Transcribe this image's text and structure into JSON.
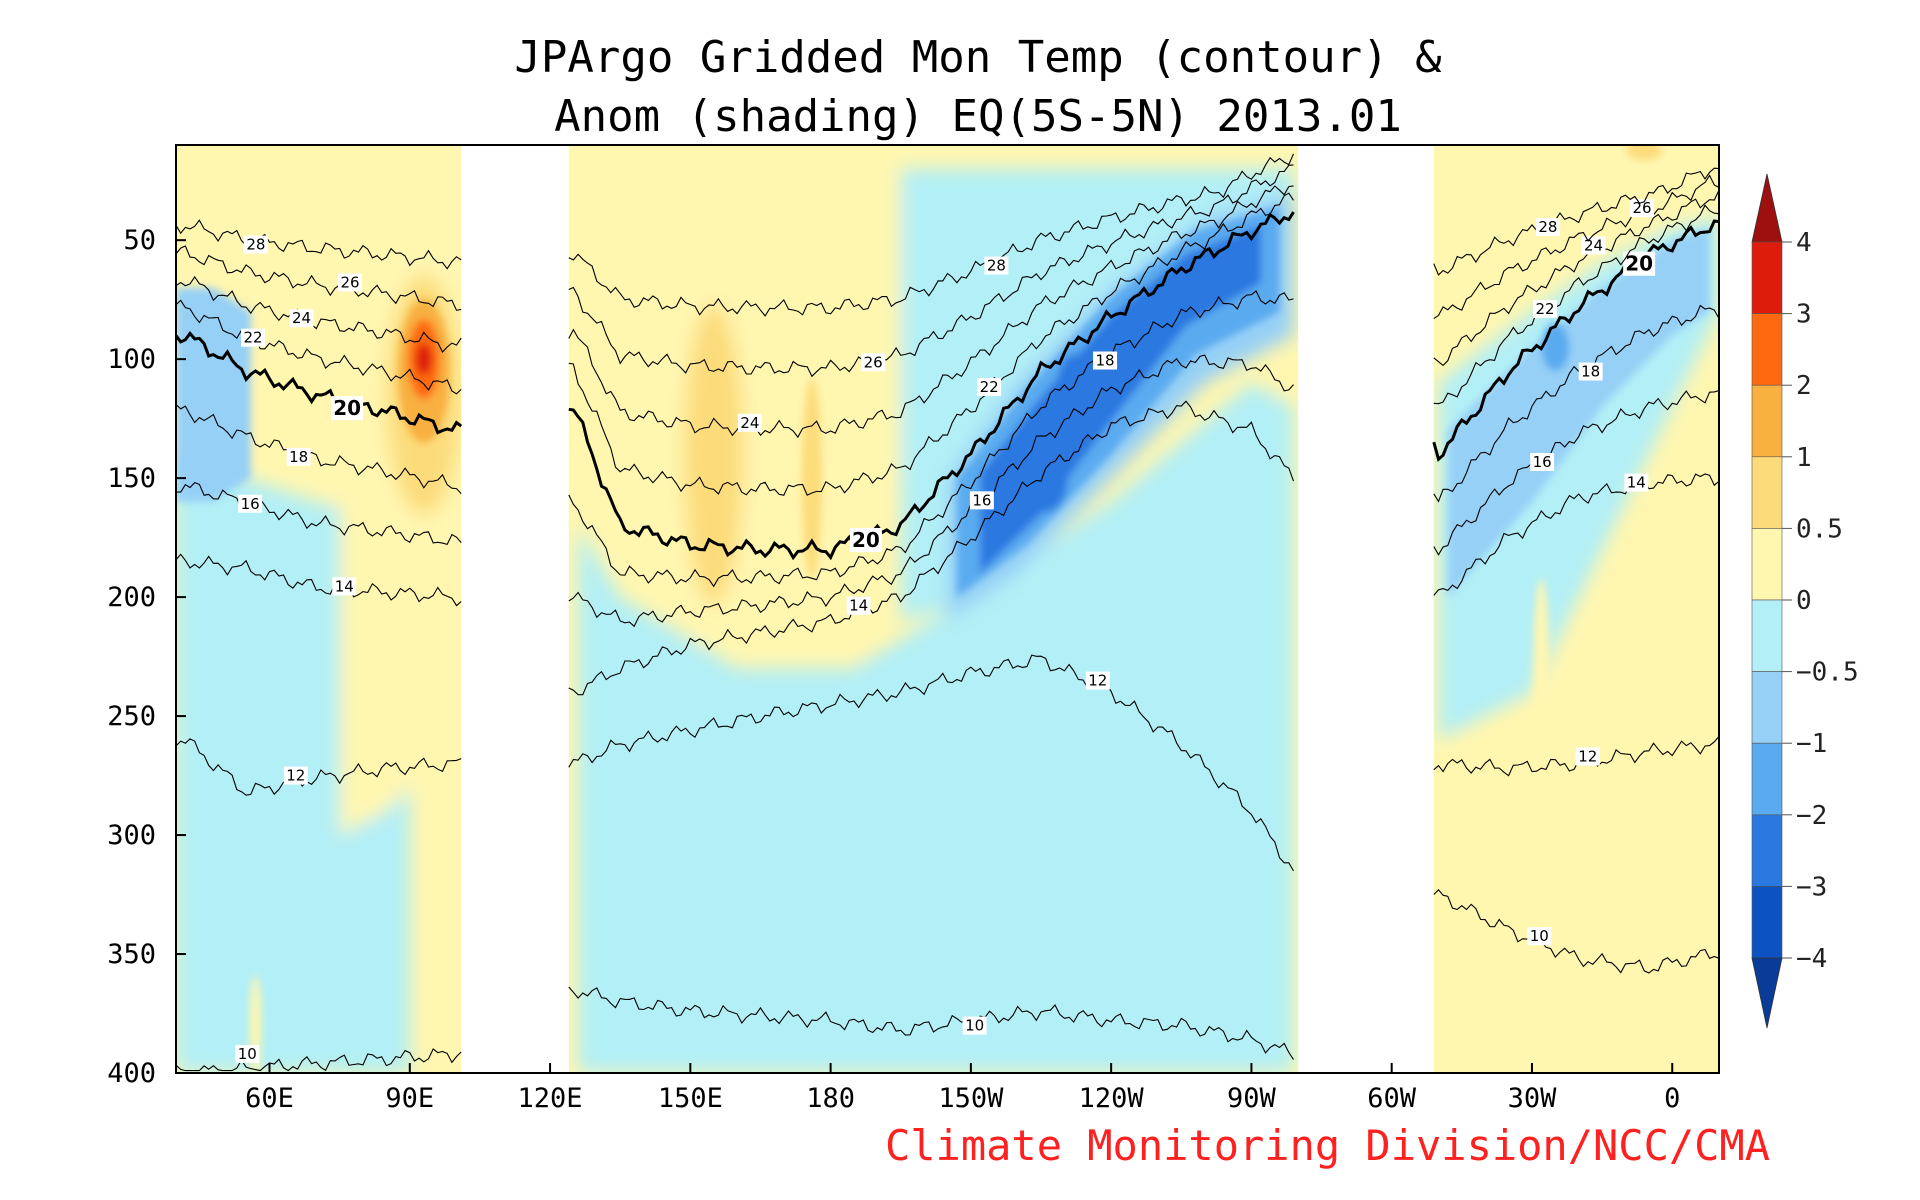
{
  "chart_data": {
    "type": "heatmap",
    "title": [
      "JPArgo Gridded Mon Temp (contour) &",
      "Anom (shading) EQ(5S-5N) 2013.01"
    ],
    "credit": "Climate Monitoring Division/NCC/CMA",
    "xlabel": "",
    "ylabel": "",
    "x_range": [
      40,
      370
    ],
    "y_range": [
      400,
      10
    ],
    "y_ticks": [
      50,
      100,
      150,
      200,
      250,
      300,
      350,
      400
    ],
    "y_tick_labels": [
      "50",
      "100",
      "150",
      "200",
      "250",
      "300",
      "350",
      "400"
    ],
    "x_ticks": [
      60,
      90,
      120,
      150,
      180,
      210,
      240,
      270,
      300,
      330,
      360
    ],
    "x_tick_labels": [
      "60E",
      "90E",
      "120E",
      "150E",
      "180",
      "150W",
      "120W",
      "90W",
      "60W",
      "30W",
      "0"
    ],
    "missing_longitudes": [
      [
        101,
        124
      ],
      [
        280,
        309
      ]
    ],
    "colorbar": {
      "labels": [
        "4",
        "3",
        "2",
        "1",
        "0.5",
        "0",
        "−0.5",
        "−1",
        "−2",
        "−3",
        "−4"
      ],
      "colors": [
        "#9e1010",
        "#dd1c0c",
        "#ff6a10",
        "#f8b040",
        "#fcdc7a",
        "#fff6b0",
        "#b2eff6",
        "#96d0f6",
        "#5aaaf0",
        "#2a78e0",
        "#0c52c0",
        "#083c98"
      ]
    },
    "contour_levels": [
      10,
      12,
      14,
      16,
      18,
      20,
      22,
      24,
      26,
      28
    ],
    "isotherm_depths": {
      "x": [
        42,
        55,
        70,
        85,
        100,
        125,
        135,
        150,
        165,
        180,
        195,
        210,
        225,
        240,
        255,
        270,
        279,
        310,
        325,
        340,
        355,
        368
      ],
      "t20": [
        90,
        105,
        115,
        122,
        130,
        120,
        170,
        178,
        180,
        180,
        170,
        140,
        105,
        82,
        62,
        46,
        38,
        140,
        105,
        78,
        56,
        44
      ],
      "t14": [
        185,
        188,
        196,
        198,
        200,
        240,
        230,
        220,
        215,
        210,
        200,
        175,
        148,
        128,
        120,
        130,
        150,
        200,
        175,
        158,
        152,
        150
      ],
      "t12": [
        260,
        282,
        276,
        272,
        270,
        270,
        262,
        256,
        250,
        245,
        240,
        232,
        226,
        240,
        262,
        290,
        315,
        270,
        272,
        270,
        265,
        262
      ],
      "t10": [
        400,
        398,
        396,
        394,
        392,
        365,
        370,
        374,
        376,
        378,
        382,
        378,
        374,
        378,
        380,
        386,
        392,
        325,
        340,
        352,
        356,
        350
      ]
    },
    "anomaly_features": [
      {
        "name": "warm core",
        "x": 93,
        "depth": 100,
        "anom": 3.2
      },
      {
        "name": "warm lens",
        "x": 155,
        "depth": 135,
        "anom": 1.4
      },
      {
        "name": "cold tongue",
        "x": 225,
        "depth": 100,
        "anom": -3.2
      },
      {
        "name": "cold east atlantic",
        "x": 340,
        "depth": 90,
        "anom": -1.8
      },
      {
        "name": "warm atlantic surface",
        "x": 355,
        "depth": 20,
        "anom": 1.2
      }
    ],
    "grid": false,
    "legend_placement": "right"
  }
}
